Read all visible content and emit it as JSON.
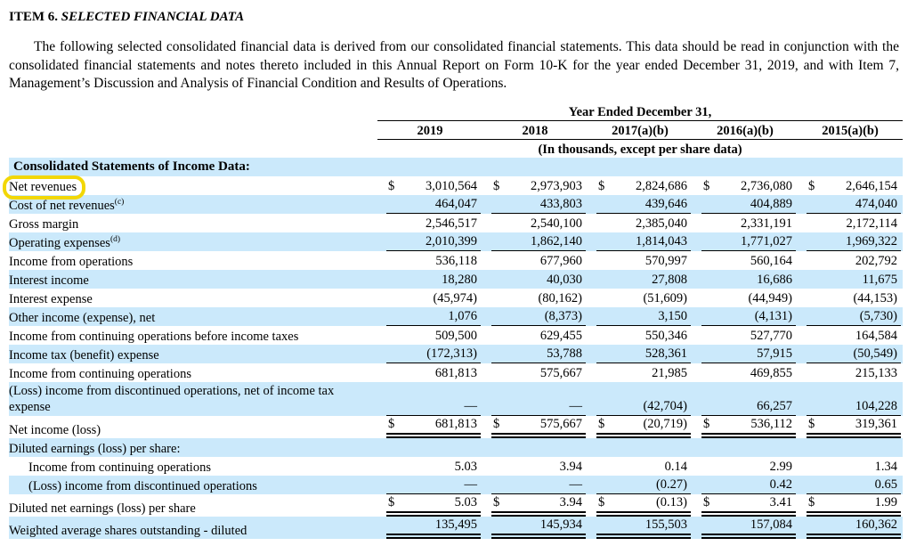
{
  "document": {
    "item_label": "ITEM 6.",
    "item_title": "SELECTED FINANCIAL DATA",
    "intro_paragraph": "The following selected consolidated financial data is derived from our consolidated financial statements. This data should be read in conjunction with the consolidated financial statements and notes thereto included in this Annual Report on Form 10-K for the year ended December 31, 2019, and with Item 7, Management’s Discussion and Analysis of Financial Condition and Results of Operations."
  },
  "table": {
    "period_header": "Year Ended December 31,",
    "columns": [
      "2019",
      "2018",
      "2017(a)(b)",
      "2016(a)(b)",
      "2015(a)(b)"
    ],
    "unit_note": "(In thousands, except per share data)",
    "section_header": "Consolidated Statements of Income Data:",
    "rows": [
      {
        "label": "Net revenues",
        "bg": "white",
        "dollar": true,
        "line": "none",
        "highlight": true,
        "values": [
          "3,010,564",
          "2,973,903",
          "2,824,686",
          "2,736,080",
          "2,646,154"
        ]
      },
      {
        "label": "Cost of net revenues",
        "sup": "(c)",
        "bg": "blue",
        "dollar": false,
        "line": "single",
        "values": [
          "464,047",
          "433,803",
          "439,646",
          "404,889",
          "474,040"
        ]
      },
      {
        "label": "Gross margin",
        "bg": "white",
        "dollar": false,
        "line": "none",
        "values": [
          "2,546,517",
          "2,540,100",
          "2,385,040",
          "2,331,191",
          "2,172,114"
        ]
      },
      {
        "label": "Operating expenses",
        "sup": "(d)",
        "bg": "blue",
        "dollar": false,
        "line": "single",
        "values": [
          "2,010,399",
          "1,862,140",
          "1,814,043",
          "1,771,027",
          "1,969,322"
        ]
      },
      {
        "label": "Income from operations",
        "bg": "white",
        "dollar": false,
        "line": "none",
        "values": [
          "536,118",
          "677,960",
          "570,997",
          "560,164",
          "202,792"
        ]
      },
      {
        "label": "Interest income",
        "bg": "blue",
        "dollar": false,
        "line": "none",
        "values": [
          "18,280",
          "40,030",
          "27,808",
          "16,686",
          "11,675"
        ]
      },
      {
        "label": "Interest expense",
        "bg": "white",
        "dollar": false,
        "line": "none",
        "values": [
          "(45,974)",
          "(80,162)",
          "(51,609)",
          "(44,949)",
          "(44,153)"
        ]
      },
      {
        "label": "Other income (expense), net",
        "bg": "blue",
        "dollar": false,
        "line": "single",
        "values": [
          "1,076",
          "(8,373)",
          "3,150",
          "(4,131)",
          "(5,730)"
        ]
      },
      {
        "label": "Income from continuing operations before income taxes",
        "bg": "white",
        "dollar": false,
        "line": "none",
        "values": [
          "509,500",
          "629,455",
          "550,346",
          "527,770",
          "164,584"
        ]
      },
      {
        "label": "Income tax (benefit) expense",
        "bg": "blue",
        "dollar": false,
        "line": "single",
        "values": [
          "(172,313)",
          "53,788",
          "528,361",
          "57,915",
          "(50,549)"
        ]
      },
      {
        "label": "Income from continuing operations",
        "bg": "white",
        "dollar": false,
        "line": "none",
        "values": [
          "681,813",
          "575,667",
          "21,985",
          "469,855",
          "215,133"
        ]
      },
      {
        "label": "(Loss) income from discontinued operations, net of income tax expense",
        "bg": "blue",
        "dollar": false,
        "line": "single",
        "tall": true,
        "values": [
          "—",
          "—",
          "(42,704)",
          "66,257",
          "104,228"
        ]
      },
      {
        "label": "Net income (loss)",
        "bg": "white",
        "dollar": true,
        "line": "double",
        "values": [
          "681,813",
          "575,667",
          "(20,719)",
          "536,112",
          "319,361"
        ]
      },
      {
        "label": "Diluted earnings (loss) per share:",
        "bg": "blue",
        "dollar": false,
        "line": "none",
        "values": [
          "",
          "",
          "",
          "",
          ""
        ]
      },
      {
        "label": "Income from continuing operations",
        "indent": true,
        "bg": "white",
        "dollar": false,
        "line": "none",
        "values": [
          "5.03",
          "3.94",
          "0.14",
          "2.99",
          "1.34"
        ]
      },
      {
        "label": "(Loss) income from discontinued operations",
        "indent": true,
        "bg": "blue",
        "dollar": false,
        "line": "single",
        "values": [
          "—",
          "—",
          "(0.27)",
          "0.42",
          "0.65"
        ]
      },
      {
        "label": "Diluted net earnings (loss) per share",
        "bg": "white",
        "dollar": true,
        "line": "double",
        "values": [
          "5.03",
          "3.94",
          "(0.13)",
          "3.41",
          "1.99"
        ]
      },
      {
        "label": "Weighted average shares outstanding - diluted",
        "bg": "blue",
        "dollar": false,
        "line": "double",
        "values": [
          "135,495",
          "145,934",
          "155,503",
          "157,084",
          "160,362"
        ]
      }
    ]
  },
  "annotation": {
    "type": "highlight-ring",
    "target": "Net revenues",
    "color": "#f2d706"
  },
  "colors": {
    "alt_row": "#cbe9fb",
    "text": "#000000",
    "background": "#ffffff"
  }
}
